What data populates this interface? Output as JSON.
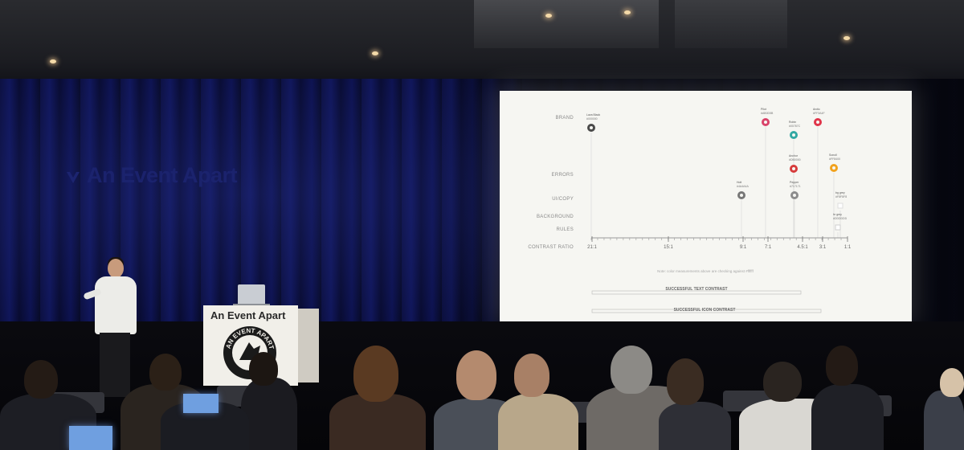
{
  "event": {
    "watermark_text": "An Event Apart",
    "podium_text": "An Event Apart",
    "seal_text": "AN EVENT APART"
  },
  "slide": {
    "row_labels": {
      "brand": "BRAND",
      "errors": "ERRORS",
      "ui_copy": "UI/COPY",
      "background": "BACKGROUND",
      "rules": "RULES",
      "contrast_ratio": "CONTRAST RATIO"
    },
    "ticks": [
      "21:1",
      "15:1",
      "9:1",
      "7:1",
      "4.5:1",
      "3:1",
      "1:1"
    ],
    "markers": [
      {
        "name": "Lava Black",
        "hex": "#000000",
        "row": "brand",
        "color": "#4a4a4a"
      },
      {
        "name": "Pilot",
        "hex": "#AB0D5B",
        "row": "brand",
        "color": "#d9436a"
      },
      {
        "name": "Robin",
        "hex": "#00787C",
        "row": "brand",
        "color": "#32a8a3"
      },
      {
        "name": "Arctic",
        "hex": "#FF3A4F",
        "row": "brand",
        "color": "#e0354a"
      },
      {
        "name": "Anchor",
        "hex": "#DB0000",
        "row": "errors",
        "color": "#d63b3b"
      },
      {
        "name": "Sonoll",
        "hex": "#FF8400",
        "row": "errors",
        "color": "#f1a21e"
      },
      {
        "name": "Holt",
        "hex": "#4A4A4A",
        "row": "ui_copy",
        "color": "#777777"
      },
      {
        "name": "Pepper",
        "hex": "#717171",
        "row": "ui_copy",
        "color": "#8c8c8c"
      },
      {
        "name": "bg grey",
        "hex": "#F8F8F8",
        "row": "background",
        "color": "#dddddd"
      },
      {
        "name": "hr grey",
        "hex": "#DDDDDD",
        "row": "rules",
        "color": "#cfcfcf"
      }
    ],
    "note": "Note: color measurements above are checking against #ffffff",
    "bars": {
      "text": "SUCCESSFUL TEXT CONTRAST",
      "icon": "SUCCESSFUL ICON CONTRAST"
    }
  },
  "colors": {
    "screen_bg": "#f6f6f2",
    "curtain": "#10165a",
    "axis": "#9a9a9a"
  }
}
